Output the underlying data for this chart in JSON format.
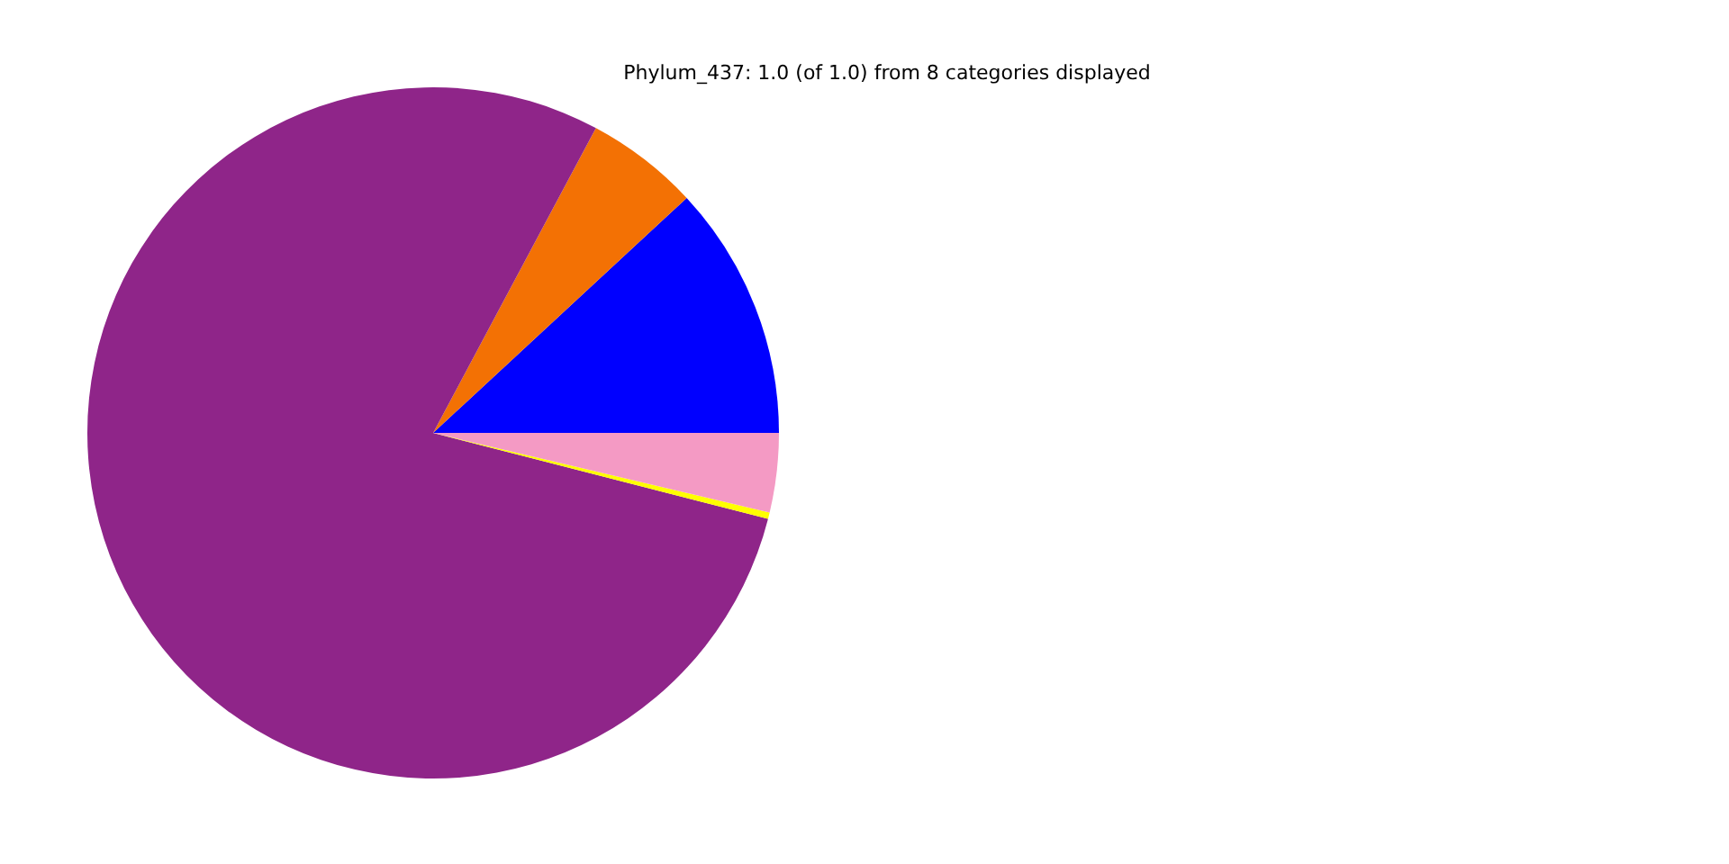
{
  "chart_data": {
    "type": "pie",
    "title": "Phylum_437: 1.0 (of 1.0) from 8 categories displayed",
    "categories": [
      null,
      null,
      null,
      null,
      null
    ],
    "values": [
      11.9,
      5.3,
      78.8,
      0.3,
      3.7
    ],
    "colors": [
      "#0000ff",
      "#f37104",
      "#8f2589",
      "#ffff00",
      "#f49ac4"
    ]
  }
}
